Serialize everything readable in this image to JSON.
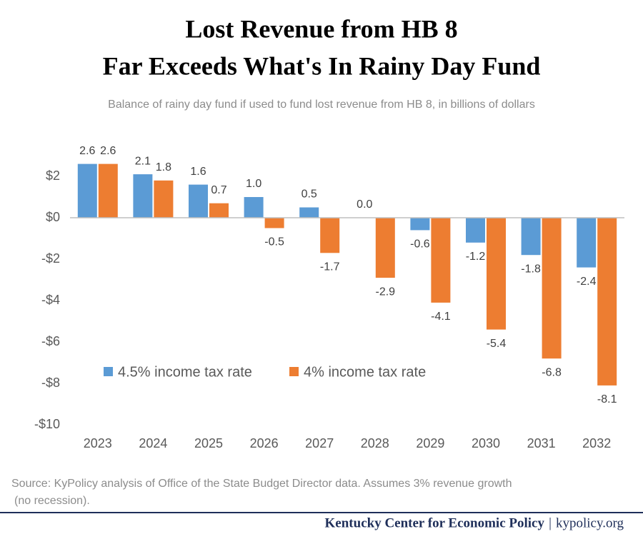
{
  "chart_data": {
    "type": "bar",
    "title": [
      "Lost Revenue from HB 8",
      "Far Exceeds What's In Rainy Day Fund"
    ],
    "subtitle": "Balance of rainy day fund if used to fund lost revenue from HB 8, in billions of dollars",
    "categories": [
      "2023",
      "2024",
      "2025",
      "2026",
      "2027",
      "2028",
      "2029",
      "2030",
      "2031",
      "2032"
    ],
    "series": [
      {
        "name": "4.5% income tax rate",
        "color": "#5b9bd5",
        "values": [
          2.6,
          2.1,
          1.6,
          1.0,
          0.5,
          0.0,
          -0.6,
          -1.2,
          -1.8,
          -2.4
        ],
        "value_labels": [
          "2.6",
          "2.1",
          "1.6",
          "1.0",
          "0.5",
          "0.0",
          "-0.6",
          "-1.2",
          "-1.8",
          "-2.4"
        ]
      },
      {
        "name": "4% income tax rate",
        "color": "#ed7d31",
        "values": [
          2.6,
          1.8,
          0.7,
          -0.5,
          -1.7,
          -2.9,
          -4.1,
          -5.4,
          -6.8,
          -8.1
        ],
        "value_labels": [
          "2.6",
          "1.8",
          "0.7",
          "-0.5",
          "-1.7",
          "-2.9",
          "-4.1",
          "-5.4",
          "-6.8",
          "-8.1"
        ]
      }
    ],
    "ylim": [
      -10,
      3
    ],
    "yticks": [
      {
        "value": -10,
        "label": "-$10"
      },
      {
        "value": -8,
        "label": "-$8"
      },
      {
        "value": -6,
        "label": "-$6"
      },
      {
        "value": -4,
        "label": "-$4"
      },
      {
        "value": -2,
        "label": "-$2"
      },
      {
        "value": 0,
        "label": "$0"
      },
      {
        "value": 2,
        "label": "$2"
      }
    ],
    "grid": false,
    "source": [
      "Source: KyPolicy analysis of Office of the State Budget Director data. Assumes 3% revenue growth",
      "(no recession)."
    ],
    "footer": {
      "organization": "Kentucky Center for Economic Policy",
      "separator": "|",
      "website": "kypolicy.org"
    }
  }
}
